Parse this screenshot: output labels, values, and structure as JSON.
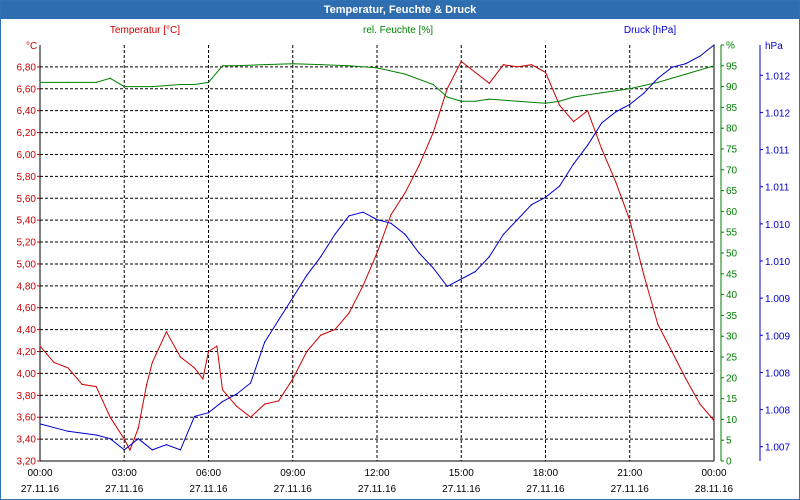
{
  "window": {
    "title": "Temperatur, Feuchte & Druck"
  },
  "colors": {
    "temperature": "#cc0000",
    "humidity": "#008000",
    "pressure": "#0000cc",
    "grid": "#000000",
    "titlebar": "#2e6db0",
    "axis_unit_left": "#cc0000",
    "axis_unit_right": "#0000cc"
  },
  "chart_data": {
    "type": "line",
    "legend": [
      "Temperatur [°C]",
      "rel. Feuchte [%]",
      "Druck [hPa]"
    ],
    "axis_units": {
      "left": "°C",
      "right1": "%",
      "right2": "hPa"
    },
    "x_ticks": [
      {
        "time": "00:00",
        "date": "27.11.16"
      },
      {
        "time": "03:00",
        "date": "27.11.16"
      },
      {
        "time": "06:00",
        "date": "27.11.16"
      },
      {
        "time": "09:00",
        "date": "27.11.16"
      },
      {
        "time": "12:00",
        "date": "27.11.16"
      },
      {
        "time": "15:00",
        "date": "27.11.16"
      },
      {
        "time": "18:00",
        "date": "27.11.16"
      },
      {
        "time": "21:00",
        "date": "27.11.16"
      },
      {
        "time": "00:00",
        "date": "28.11.16"
      }
    ],
    "xlim": [
      0,
      24
    ],
    "y_left": {
      "label": "Temperatur [°C]",
      "ylim": [
        3.2,
        7.0
      ],
      "ticks": [
        "3,20",
        "3,40",
        "3,60",
        "3,80",
        "4,00",
        "4,20",
        "4,40",
        "4,60",
        "4,80",
        "5,00",
        "5,20",
        "5,40",
        "5,60",
        "5,80",
        "6,00",
        "6,20",
        "6,40",
        "6,60",
        "6,80"
      ]
    },
    "y_right1": {
      "label": "rel. Feuchte [%]",
      "ylim": [
        0,
        100
      ],
      "ticks": [
        "0",
        "5",
        "10",
        "15",
        "20",
        "25",
        "30",
        "35",
        "40",
        "45",
        "50",
        "55",
        "60",
        "65",
        "70",
        "75",
        "80",
        "85",
        "90",
        "95",
        "%"
      ]
    },
    "y_right2": {
      "label": "Druck [hPa]",
      "ylim": [
        1006.7,
        1012.3
      ],
      "ticks": [
        "1.007",
        "1.008",
        "1.008",
        "1.009",
        "1.009",
        "1.010",
        "1.010",
        "1.011",
        "1.011",
        "1.012",
        "1.012"
      ]
    },
    "series": [
      {
        "name": "Temperatur",
        "axis": "left",
        "x": [
          0,
          0.5,
          1,
          1.5,
          2,
          2.5,
          3,
          3.2,
          3.5,
          3.8,
          4,
          4.5,
          5,
          5.5,
          5.8,
          6,
          6.3,
          6.5,
          7,
          7.5,
          8,
          8.5,
          9,
          9.5,
          10,
          10.5,
          11,
          11.5,
          12,
          12.5,
          13,
          13.5,
          14,
          14.5,
          15,
          15.5,
          16,
          16.5,
          17,
          17.5,
          18,
          18.5,
          19,
          19.5,
          20,
          20.5,
          21,
          21.5,
          22,
          22.5,
          23,
          23.5,
          24
        ],
        "values": [
          4.25,
          4.1,
          4.05,
          3.9,
          3.88,
          3.6,
          3.4,
          3.3,
          3.5,
          3.9,
          4.1,
          4.38,
          4.15,
          4.05,
          3.95,
          4.2,
          4.25,
          3.85,
          3.7,
          3.6,
          3.72,
          3.75,
          3.95,
          4.2,
          4.35,
          4.4,
          4.55,
          4.8,
          5.1,
          5.45,
          5.65,
          5.9,
          6.2,
          6.6,
          6.85,
          6.75,
          6.65,
          6.82,
          6.8,
          6.82,
          6.75,
          6.45,
          6.3,
          6.4,
          6.05,
          5.75,
          5.4,
          4.9,
          4.45,
          4.2,
          3.95,
          3.72,
          3.57
        ]
      },
      {
        "name": "rel. Feuchte",
        "axis": "right1",
        "x": [
          0,
          1,
          2,
          2.5,
          3,
          4,
          5,
          5.5,
          6,
          6.5,
          7,
          8,
          9,
          10,
          11,
          12,
          13,
          14,
          14.5,
          15,
          15.5,
          16,
          17,
          18,
          18.5,
          19,
          20,
          21,
          22,
          23,
          24
        ],
        "values": [
          91,
          91,
          91,
          92,
          90,
          90,
          90.5,
          90.5,
          91,
          95,
          95,
          95.3,
          95.5,
          95.3,
          95,
          94.5,
          93,
          90.5,
          87.5,
          86.5,
          86.5,
          87,
          86.5,
          86,
          86.5,
          87.5,
          88.5,
          89.5,
          91,
          93,
          95
        ]
      },
      {
        "name": "Druck",
        "axis": "right2",
        "x": [
          0,
          1,
          2,
          2.5,
          3,
          3.5,
          4,
          4.5,
          5,
          5.5,
          6,
          6.5,
          7,
          7.5,
          8,
          8.5,
          9,
          9.5,
          10,
          10.5,
          11,
          11.5,
          12,
          12.5,
          13,
          13.5,
          14,
          14.5,
          15,
          15.5,
          16,
          16.5,
          17,
          17.5,
          18,
          18.5,
          19,
          19.5,
          20,
          20.5,
          21,
          21.5,
          22,
          22.5,
          23,
          23.5,
          24
        ],
        "values": [
          1007.2,
          1007.1,
          1007.05,
          1007.0,
          1006.85,
          1007.0,
          1006.85,
          1006.92,
          1006.85,
          1007.3,
          1007.35,
          1007.5,
          1007.6,
          1007.75,
          1008.3,
          1008.6,
          1008.9,
          1009.2,
          1009.45,
          1009.75,
          1010.0,
          1010.05,
          1009.95,
          1009.9,
          1009.75,
          1009.5,
          1009.3,
          1009.05,
          1009.15,
          1009.25,
          1009.45,
          1009.75,
          1009.95,
          1010.15,
          1010.25,
          1010.4,
          1010.7,
          1010.95,
          1011.25,
          1011.4,
          1011.5,
          1011.65,
          1011.85,
          1012.0,
          1012.05,
          1012.15,
          1012.3
        ]
      }
    ]
  }
}
